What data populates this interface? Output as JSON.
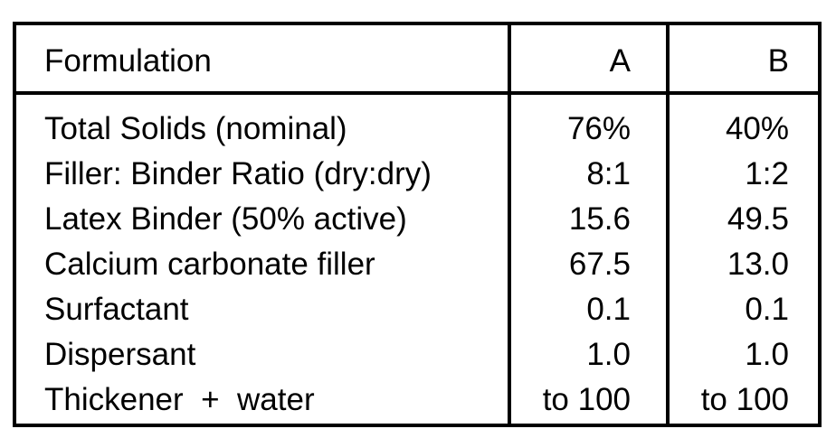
{
  "table": {
    "header": {
      "label": "Formulation",
      "col_a": "A",
      "col_b": "B"
    },
    "rows": [
      {
        "label": "Total Solids (nominal)",
        "a": "76%",
        "b": "40%"
      },
      {
        "label": "Filler: Binder Ratio (dry:dry)",
        "a": "8:1",
        "b": "1:2"
      },
      {
        "label": "Latex Binder (50% active)",
        "a": "15.6",
        "b": "49.5"
      },
      {
        "label": "Calcium carbonate filler",
        "a": "67.5",
        "b": "13.0"
      },
      {
        "label": "Surfactant",
        "a": "0.1",
        "b": "0.1"
      },
      {
        "label": "Dispersant",
        "a": "1.0",
        "b": "1.0"
      },
      {
        "label": "Thickener  +  water",
        "a": "to 100",
        "b": "to 100"
      }
    ]
  }
}
